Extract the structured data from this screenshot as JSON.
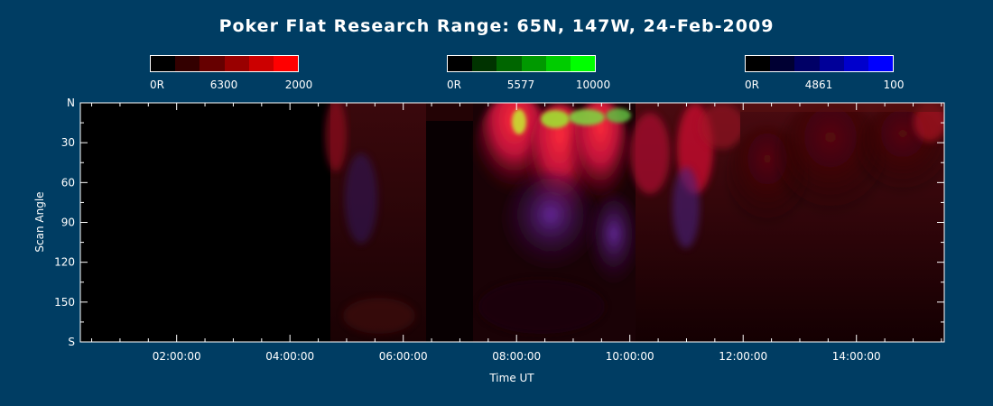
{
  "colors": {
    "background": "#003d63",
    "axis": "#ffffff"
  },
  "chart_data": {
    "type": "heatmap",
    "title": "Poker Flat Research Range: 65N, 147W, 24-Feb-2009",
    "xlabel": "Time UT",
    "ylabel": "Scan Angle",
    "xlim": [
      0.3,
      15.55
    ],
    "ylim": [
      0,
      180
    ],
    "x_ticks": [
      "02:00:00",
      "04:00:00",
      "06:00:00",
      "08:00:00",
      "10:00:00",
      "12:00:00",
      "14:00:00"
    ],
    "x_tick_values": [
      2,
      4,
      6,
      8,
      10,
      12,
      14
    ],
    "y_ticks": [
      "N",
      "30",
      "60",
      "90",
      "120",
      "150",
      "S"
    ],
    "y_tick_values": [
      0,
      30,
      60,
      90,
      120,
      150,
      180
    ],
    "colorbars": [
      {
        "wavelength": "6300",
        "min_label": "0R",
        "max_label": "2000",
        "colors": [
          "#000000",
          "#330000",
          "#660000",
          "#990000",
          "#cc0000",
          "#ff0000"
        ]
      },
      {
        "wavelength": "5577",
        "min_label": "0R",
        "max_label": "10000",
        "colors": [
          "#000000",
          "#003300",
          "#006600",
          "#009900",
          "#00cc00",
          "#00ff00"
        ]
      },
      {
        "wavelength": "4861",
        "min_label": "0R",
        "max_label": "100",
        "colors": [
          "#000000",
          "#000033",
          "#000066",
          "#000099",
          "#0000cc",
          "#0000ff"
        ]
      }
    ],
    "data_segments": [
      {
        "start": 0.3,
        "end": 4.55,
        "description": "no signal"
      },
      {
        "start": 4.55,
        "end": 6.25,
        "description": "faint red, dim blue patches"
      },
      {
        "start": 6.25,
        "end": 7.1,
        "description": "near-black gap"
      },
      {
        "start": 7.1,
        "end": 9.9,
        "description": "bright red/pink aurora with green tops near N and blue/purple rays"
      },
      {
        "start": 9.9,
        "end": 11.6,
        "description": "dim red with purple streaks"
      },
      {
        "start": 11.6,
        "end": 15.55,
        "description": "faint red glow fading toward S"
      }
    ]
  }
}
